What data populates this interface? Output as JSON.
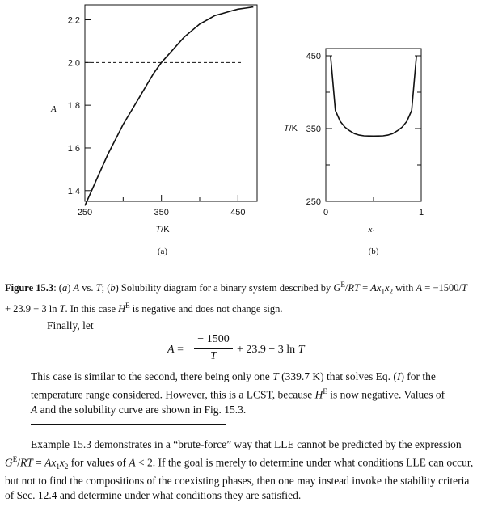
{
  "chart_data": [
    {
      "type": "line",
      "xlabel": "T/K",
      "ylabel": "A",
      "panel_label": "(a)",
      "x_ticks": [
        "250",
        "350",
        "450"
      ],
      "y_ticks": [
        "1.4",
        "1.6",
        "1.8",
        "2.0",
        "2.2"
      ],
      "xlim": [
        250,
        475
      ],
      "ylim": [
        1.35,
        2.27
      ],
      "series": [
        {
          "x": [
            250,
            260,
            270,
            280,
            290,
            300,
            310,
            320,
            330,
            340,
            350,
            360,
            370,
            380,
            390,
            400,
            410,
            420,
            430,
            440,
            450,
            460,
            470
          ],
          "y": [
            1.33,
            1.41,
            1.49,
            1.57,
            1.64,
            1.71,
            1.77,
            1.83,
            1.89,
            1.95,
            2.0,
            2.04,
            2.08,
            2.12,
            2.15,
            2.18,
            2.2,
            2.22,
            2.23,
            2.24,
            2.25,
            2.255,
            2.26
          ]
        }
      ],
      "reference_line": {
        "y": 2.0,
        "style": "dashed"
      }
    },
    {
      "type": "line",
      "xlabel": "x1",
      "ylabel": "T/K",
      "panel_label": "(b)",
      "x_ticks": [
        "0",
        "1"
      ],
      "y_ticks": [
        "250",
        "350",
        "450"
      ],
      "xlim": [
        0,
        1
      ],
      "ylim": [
        250,
        460
      ],
      "series": [
        {
          "x": [
            0.05,
            0.1,
            0.15,
            0.2,
            0.25,
            0.3,
            0.35,
            0.4,
            0.45,
            0.5,
            0.55,
            0.6,
            0.65,
            0.7,
            0.75,
            0.8,
            0.85,
            0.9,
            0.95
          ],
          "y": [
            450,
            375,
            360,
            352,
            347,
            343,
            341,
            340,
            339.8,
            339.7,
            339.8,
            340,
            341,
            343,
            347,
            352,
            360,
            375,
            450
          ]
        }
      ]
    }
  ],
  "caption": {
    "label": "Figure 15.3",
    "text": ": (a) A vs. T; (b) Solubility diagram for a binary system described by G^E/RT = Ax₁x₂ with A = −1500/T + 23.9 − 3 ln T. In this case H^E is negative and does not change sign."
  },
  "text": {
    "finally": "Finally, let",
    "para1": "This case is similar to the second, there being only one T (339.7 K) that solves Eq. (I) for the temperature range considered. However, this is a LCST, because H^E is now negative. Values of A and the solubility curve are shown in Fig. 15.3.",
    "para2": "Example 15.3 demonstrates in a “brute-force” way that LLE cannot be predicted by the expression G^E/RT = Ax₁x₂ for values of A < 2. If the goal is merely to determine under what conditions LLE can occur, but not to find the compositions of the coexisting phases, then one may instead invoke the stability criteria of Sec. 12.4 and determine under what conditions they are satisfied."
  },
  "equation": {
    "lhs": "A =",
    "numerator": "− 1500",
    "denominator": "T",
    "rest": "+ 23.9 − 3 ln T"
  }
}
